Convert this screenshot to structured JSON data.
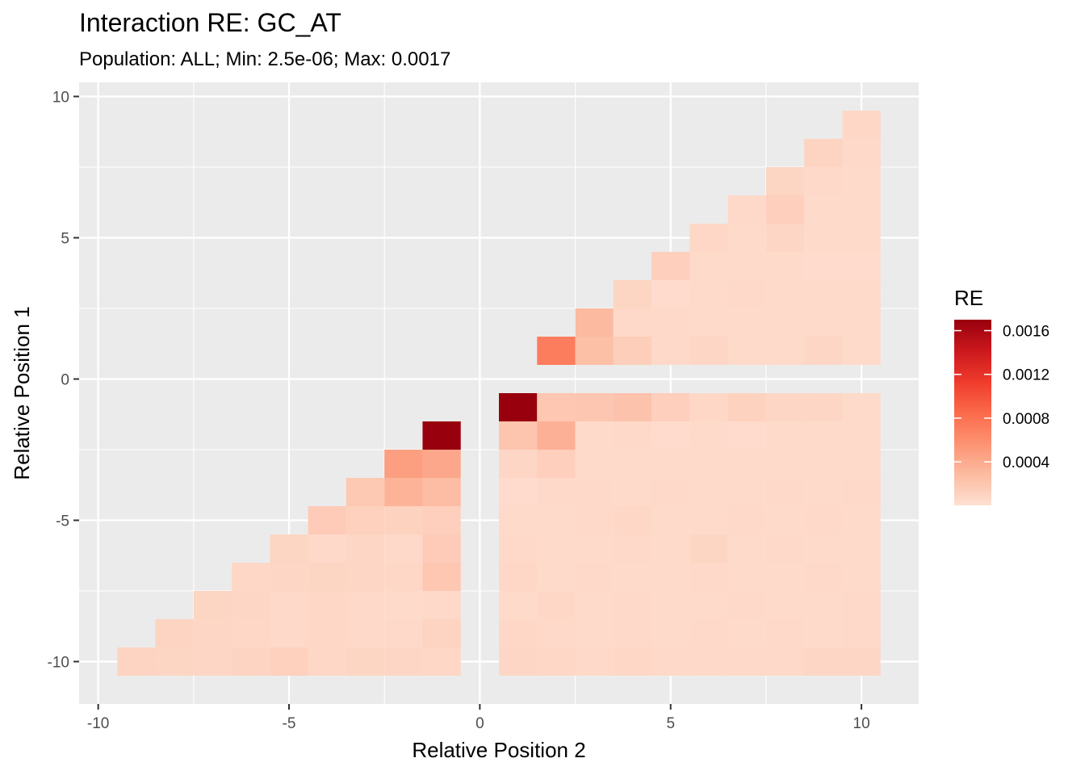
{
  "chart_data": {
    "type": "heatmap",
    "title": "Interaction RE: GC_AT",
    "subtitle": "Population: ALL; Min: 2.5e-06; Max: 0.0017",
    "xlabel": "Relative Position 2",
    "ylabel": "Relative Position 1",
    "xlim": [
      -10.5,
      11.5
    ],
    "ylim": [
      -11.5,
      10.5
    ],
    "x_ticks": [
      -10,
      -5,
      0,
      5,
      10
    ],
    "y_ticks": [
      -10,
      -5,
      0,
      5,
      10
    ],
    "x_tick_labels": [
      "-10",
      "-5",
      "0",
      "5",
      "10"
    ],
    "y_tick_labels": [
      "-10",
      "-5",
      "0",
      "5",
      "10"
    ],
    "grid": true,
    "fill_scale": {
      "colors": [
        "#fee0d2",
        "#fcbba1",
        "#fc9272",
        "#fb6a4a",
        "#ef3b2c",
        "#cb181d",
        "#99000d"
      ],
      "min": 2.5e-06,
      "max": 0.0017
    },
    "legend": {
      "title": "RE",
      "position": "right",
      "breaks": [
        0.0004,
        0.0008,
        0.0012,
        0.0016
      ],
      "labels": [
        "0.0004",
        "0.0008",
        "0.0012",
        "0.0016"
      ]
    },
    "cells": [
      {
        "x": 10,
        "y": 9,
        "value": 7e-05
      },
      {
        "x": 9,
        "y": 8,
        "value": 0.0001
      },
      {
        "x": 10,
        "y": 8,
        "value": 6e-05
      },
      {
        "x": 8,
        "y": 7,
        "value": 9e-05
      },
      {
        "x": 9,
        "y": 7,
        "value": 6e-05
      },
      {
        "x": 10,
        "y": 7,
        "value": 5e-05
      },
      {
        "x": 7,
        "y": 6,
        "value": 6e-05
      },
      {
        "x": 8,
        "y": 6,
        "value": 0.00013
      },
      {
        "x": 9,
        "y": 6,
        "value": 5e-05
      },
      {
        "x": 10,
        "y": 6,
        "value": 5e-05
      },
      {
        "x": 6,
        "y": 5,
        "value": 7e-05
      },
      {
        "x": 7,
        "y": 5,
        "value": 5e-05
      },
      {
        "x": 8,
        "y": 5,
        "value": 8e-05
      },
      {
        "x": 9,
        "y": 5,
        "value": 5e-05
      },
      {
        "x": 10,
        "y": 5,
        "value": 5e-05
      },
      {
        "x": 5,
        "y": 4,
        "value": 0.00013
      },
      {
        "x": 6,
        "y": 4,
        "value": 5e-05
      },
      {
        "x": 7,
        "y": 4,
        "value": 5e-05
      },
      {
        "x": 8,
        "y": 4,
        "value": 5e-05
      },
      {
        "x": 9,
        "y": 4,
        "value": 4e-05
      },
      {
        "x": 10,
        "y": 4,
        "value": 4e-05
      },
      {
        "x": 4,
        "y": 3,
        "value": 9e-05
      },
      {
        "x": 5,
        "y": 3,
        "value": 4e-05
      },
      {
        "x": 6,
        "y": 3,
        "value": 5e-05
      },
      {
        "x": 7,
        "y": 3,
        "value": 6e-05
      },
      {
        "x": 8,
        "y": 3,
        "value": 5e-05
      },
      {
        "x": 9,
        "y": 3,
        "value": 5e-05
      },
      {
        "x": 10,
        "y": 3,
        "value": 5e-05
      },
      {
        "x": 3,
        "y": 2,
        "value": 0.00029
      },
      {
        "x": 4,
        "y": 2,
        "value": 6e-05
      },
      {
        "x": 5,
        "y": 2,
        "value": 6e-05
      },
      {
        "x": 6,
        "y": 2,
        "value": 5e-05
      },
      {
        "x": 7,
        "y": 2,
        "value": 5e-05
      },
      {
        "x": 8,
        "y": 2,
        "value": 5e-05
      },
      {
        "x": 9,
        "y": 2,
        "value": 5e-05
      },
      {
        "x": 10,
        "y": 2,
        "value": 5e-05
      },
      {
        "x": 2,
        "y": 1,
        "value": 0.00072
      },
      {
        "x": 3,
        "y": 1,
        "value": 0.00025
      },
      {
        "x": 4,
        "y": 1,
        "value": 0.00014
      },
      {
        "x": 5,
        "y": 1,
        "value": 6e-05
      },
      {
        "x": 6,
        "y": 1,
        "value": 8e-05
      },
      {
        "x": 7,
        "y": 1,
        "value": 5e-05
      },
      {
        "x": 8,
        "y": 1,
        "value": 5e-05
      },
      {
        "x": 9,
        "y": 1,
        "value": 8e-05
      },
      {
        "x": 10,
        "y": 1,
        "value": 5e-05
      },
      {
        "x": 1,
        "y": -1,
        "value": 0.0017
      },
      {
        "x": 2,
        "y": -1,
        "value": 0.00019
      },
      {
        "x": 3,
        "y": -1,
        "value": 0.0002
      },
      {
        "x": 4,
        "y": -1,
        "value": 0.00023
      },
      {
        "x": 5,
        "y": -1,
        "value": 0.00013
      },
      {
        "x": 6,
        "y": -1,
        "value": 7e-05
      },
      {
        "x": 7,
        "y": -1,
        "value": 0.00011
      },
      {
        "x": 8,
        "y": -1,
        "value": 8e-05
      },
      {
        "x": 9,
        "y": -1,
        "value": 8e-05
      },
      {
        "x": 10,
        "y": -1,
        "value": 5e-05
      },
      {
        "x": 1,
        "y": -2,
        "value": 0.00021
      },
      {
        "x": 2,
        "y": -2,
        "value": 0.00036
      },
      {
        "x": 3,
        "y": -2,
        "value": 5e-05
      },
      {
        "x": 4,
        "y": -2,
        "value": 6e-05
      },
      {
        "x": 5,
        "y": -2,
        "value": 4e-05
      },
      {
        "x": 6,
        "y": -2,
        "value": 5e-05
      },
      {
        "x": 7,
        "y": -2,
        "value": 4e-05
      },
      {
        "x": 8,
        "y": -2,
        "value": 5e-05
      },
      {
        "x": 9,
        "y": -2,
        "value": 5e-05
      },
      {
        "x": 10,
        "y": -2,
        "value": 5e-05
      },
      {
        "x": 1,
        "y": -3,
        "value": 8e-05
      },
      {
        "x": 2,
        "y": -3,
        "value": 0.00013
      },
      {
        "x": 3,
        "y": -3,
        "value": 5e-05
      },
      {
        "x": 4,
        "y": -3,
        "value": 5e-05
      },
      {
        "x": 5,
        "y": -3,
        "value": 5e-05
      },
      {
        "x": 6,
        "y": -3,
        "value": 5e-05
      },
      {
        "x": 7,
        "y": -3,
        "value": 5e-05
      },
      {
        "x": 8,
        "y": -3,
        "value": 5e-05
      },
      {
        "x": 9,
        "y": -3,
        "value": 5e-05
      },
      {
        "x": 10,
        "y": -3,
        "value": 5e-05
      },
      {
        "x": 1,
        "y": -4,
        "value": 4e-05
      },
      {
        "x": 2,
        "y": -4,
        "value": 6e-05
      },
      {
        "x": 3,
        "y": -4,
        "value": 6e-05
      },
      {
        "x": 4,
        "y": -4,
        "value": 5e-05
      },
      {
        "x": 5,
        "y": -4,
        "value": 6e-05
      },
      {
        "x": 6,
        "y": -4,
        "value": 5e-05
      },
      {
        "x": 7,
        "y": -4,
        "value": 5e-05
      },
      {
        "x": 8,
        "y": -4,
        "value": 6e-05
      },
      {
        "x": 9,
        "y": -4,
        "value": 5e-05
      },
      {
        "x": 10,
        "y": -4,
        "value": 6e-05
      },
      {
        "x": 1,
        "y": -5,
        "value": 5e-05
      },
      {
        "x": 2,
        "y": -5,
        "value": 5e-05
      },
      {
        "x": 3,
        "y": -5,
        "value": 6e-05
      },
      {
        "x": 4,
        "y": -5,
        "value": 7e-05
      },
      {
        "x": 5,
        "y": -5,
        "value": 5e-05
      },
      {
        "x": 6,
        "y": -5,
        "value": 5e-05
      },
      {
        "x": 7,
        "y": -5,
        "value": 6e-05
      },
      {
        "x": 8,
        "y": -5,
        "value": 5e-05
      },
      {
        "x": 9,
        "y": -5,
        "value": 6e-05
      },
      {
        "x": 10,
        "y": -5,
        "value": 5e-05
      },
      {
        "x": 1,
        "y": -6,
        "value": 6e-05
      },
      {
        "x": 2,
        "y": -6,
        "value": 5e-05
      },
      {
        "x": 3,
        "y": -6,
        "value": 5e-05
      },
      {
        "x": 4,
        "y": -6,
        "value": 6e-05
      },
      {
        "x": 5,
        "y": -6,
        "value": 5e-05
      },
      {
        "x": 6,
        "y": -6,
        "value": 9e-05
      },
      {
        "x": 7,
        "y": -6,
        "value": 5e-05
      },
      {
        "x": 8,
        "y": -6,
        "value": 6e-05
      },
      {
        "x": 9,
        "y": -6,
        "value": 5e-05
      },
      {
        "x": 10,
        "y": -6,
        "value": 5e-05
      },
      {
        "x": 1,
        "y": -7,
        "value": 7e-05
      },
      {
        "x": 2,
        "y": -7,
        "value": 5e-05
      },
      {
        "x": 3,
        "y": -7,
        "value": 6e-05
      },
      {
        "x": 4,
        "y": -7,
        "value": 5e-05
      },
      {
        "x": 5,
        "y": -7,
        "value": 5e-05
      },
      {
        "x": 6,
        "y": -7,
        "value": 6e-05
      },
      {
        "x": 7,
        "y": -7,
        "value": 5e-05
      },
      {
        "x": 8,
        "y": -7,
        "value": 5e-05
      },
      {
        "x": 9,
        "y": -7,
        "value": 6e-05
      },
      {
        "x": 10,
        "y": -7,
        "value": 5e-05
      },
      {
        "x": 1,
        "y": -8,
        "value": 5e-05
      },
      {
        "x": 2,
        "y": -8,
        "value": 7e-05
      },
      {
        "x": 3,
        "y": -8,
        "value": 5e-05
      },
      {
        "x": 4,
        "y": -8,
        "value": 6e-05
      },
      {
        "x": 5,
        "y": -8,
        "value": 5e-05
      },
      {
        "x": 6,
        "y": -8,
        "value": 5e-05
      },
      {
        "x": 7,
        "y": -8,
        "value": 6e-05
      },
      {
        "x": 8,
        "y": -8,
        "value": 5e-05
      },
      {
        "x": 9,
        "y": -8,
        "value": 5e-05
      },
      {
        "x": 10,
        "y": -8,
        "value": 6e-05
      },
      {
        "x": 1,
        "y": -9,
        "value": 7e-05
      },
      {
        "x": 2,
        "y": -9,
        "value": 6e-05
      },
      {
        "x": 3,
        "y": -9,
        "value": 5e-05
      },
      {
        "x": 4,
        "y": -9,
        "value": 6e-05
      },
      {
        "x": 5,
        "y": -9,
        "value": 5e-05
      },
      {
        "x": 6,
        "y": -9,
        "value": 6e-05
      },
      {
        "x": 7,
        "y": -9,
        "value": 5e-05
      },
      {
        "x": 8,
        "y": -9,
        "value": 6e-05
      },
      {
        "x": 9,
        "y": -9,
        "value": 5e-05
      },
      {
        "x": 10,
        "y": -9,
        "value": 6e-05
      },
      {
        "x": 1,
        "y": -10,
        "value": 8e-05
      },
      {
        "x": 2,
        "y": -10,
        "value": 7e-05
      },
      {
        "x": 3,
        "y": -10,
        "value": 6e-05
      },
      {
        "x": 4,
        "y": -10,
        "value": 7e-05
      },
      {
        "x": 5,
        "y": -10,
        "value": 6e-05
      },
      {
        "x": 6,
        "y": -10,
        "value": 6e-05
      },
      {
        "x": 7,
        "y": -10,
        "value": 6e-05
      },
      {
        "x": 8,
        "y": -10,
        "value": 6e-05
      },
      {
        "x": 9,
        "y": -10,
        "value": 8e-05
      },
      {
        "x": 10,
        "y": -10,
        "value": 8e-05
      },
      {
        "x": -1,
        "y": -2,
        "value": 0.0017
      },
      {
        "x": -2,
        "y": -3,
        "value": 0.00048
      },
      {
        "x": -1,
        "y": -3,
        "value": 0.00042
      },
      {
        "x": -3,
        "y": -4,
        "value": 0.00018
      },
      {
        "x": -2,
        "y": -4,
        "value": 0.00034
      },
      {
        "x": -1,
        "y": -4,
        "value": 0.00027
      },
      {
        "x": -4,
        "y": -5,
        "value": 0.00016
      },
      {
        "x": -3,
        "y": -5,
        "value": 0.00012
      },
      {
        "x": -2,
        "y": -5,
        "value": 0.00011
      },
      {
        "x": -1,
        "y": -5,
        "value": 0.00013
      },
      {
        "x": -5,
        "y": -6,
        "value": 9e-05
      },
      {
        "x": -4,
        "y": -6,
        "value": 6e-05
      },
      {
        "x": -3,
        "y": -6,
        "value": 8e-05
      },
      {
        "x": -2,
        "y": -6,
        "value": 6e-05
      },
      {
        "x": -1,
        "y": -6,
        "value": 0.00016
      },
      {
        "x": -6,
        "y": -7,
        "value": 7e-05
      },
      {
        "x": -5,
        "y": -7,
        "value": 8e-05
      },
      {
        "x": -4,
        "y": -7,
        "value": 9e-05
      },
      {
        "x": -3,
        "y": -7,
        "value": 8e-05
      },
      {
        "x": -2,
        "y": -7,
        "value": 7e-05
      },
      {
        "x": -1,
        "y": -7,
        "value": 0.00019
      },
      {
        "x": -7,
        "y": -8,
        "value": 9e-05
      },
      {
        "x": -6,
        "y": -8,
        "value": 8e-05
      },
      {
        "x": -5,
        "y": -8,
        "value": 6e-05
      },
      {
        "x": -4,
        "y": -8,
        "value": 7e-05
      },
      {
        "x": -3,
        "y": -8,
        "value": 6e-05
      },
      {
        "x": -2,
        "y": -8,
        "value": 5e-05
      },
      {
        "x": -1,
        "y": -8,
        "value": 6e-05
      },
      {
        "x": -8,
        "y": -9,
        "value": 0.0001
      },
      {
        "x": -7,
        "y": -9,
        "value": 8e-05
      },
      {
        "x": -6,
        "y": -9,
        "value": 7e-05
      },
      {
        "x": -5,
        "y": -9,
        "value": 6e-05
      },
      {
        "x": -4,
        "y": -9,
        "value": 7e-05
      },
      {
        "x": -3,
        "y": -9,
        "value": 6e-05
      },
      {
        "x": -2,
        "y": -9,
        "value": 6e-05
      },
      {
        "x": -1,
        "y": -9,
        "value": 0.0001
      },
      {
        "x": -9,
        "y": -10,
        "value": 0.0001
      },
      {
        "x": -8,
        "y": -10,
        "value": 9e-05
      },
      {
        "x": -7,
        "y": -10,
        "value": 8e-05
      },
      {
        "x": -6,
        "y": -10,
        "value": 0.0001
      },
      {
        "x": -5,
        "y": -10,
        "value": 0.00012
      },
      {
        "x": -4,
        "y": -10,
        "value": 7e-05
      },
      {
        "x": -3,
        "y": -10,
        "value": 9e-05
      },
      {
        "x": -2,
        "y": -10,
        "value": 8e-05
      },
      {
        "x": -1,
        "y": -10,
        "value": 7e-05
      }
    ]
  }
}
